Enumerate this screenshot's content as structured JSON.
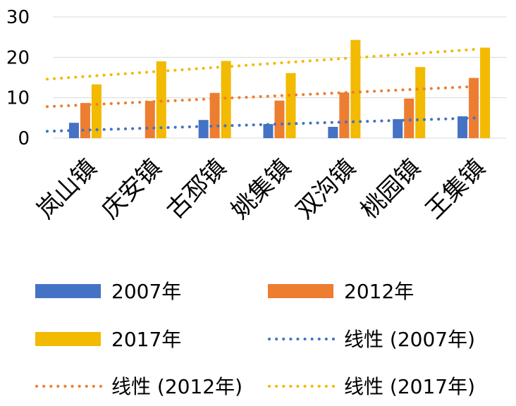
{
  "chart_data": {
    "type": "bar",
    "categories": [
      "岚山镇",
      "庆安镇",
      "古邳镇",
      "姚集镇",
      "双沟镇",
      "桃园镇",
      "王集镇"
    ],
    "series": [
      {
        "name": "2007年",
        "values": [
          3.8,
          0,
          4.5,
          3.5,
          2.8,
          4.7,
          5.4
        ],
        "color": "#4472C4"
      },
      {
        "name": "2012年",
        "values": [
          8.7,
          9.2,
          11.2,
          9.3,
          11.3,
          9.8,
          14.9
        ],
        "color": "#ED7D31"
      },
      {
        "name": "2017年",
        "values": [
          13.3,
          19.0,
          19.1,
          16.1,
          24.3,
          17.6,
          22.4
        ],
        "color": "#F2BA00"
      }
    ],
    "trendlines": [
      {
        "name": "线性 (2007年)",
        "of_series": "2007年",
        "start": 1.7,
        "end": 5.0,
        "color": "#4472C4"
      },
      {
        "name": "线性 (2012年)",
        "of_series": "2012年",
        "start": 7.8,
        "end": 12.8,
        "color": "#ED7D31"
      },
      {
        "name": "线性 (2017年)",
        "of_series": "2017年",
        "start": 14.6,
        "end": 22.0,
        "color": "#F2BA00"
      }
    ],
    "ylim": [
      0,
      30
    ],
    "yticks": [
      "0",
      "10",
      "20",
      "30"
    ],
    "grid": true,
    "legend_placement": "bottom"
  }
}
